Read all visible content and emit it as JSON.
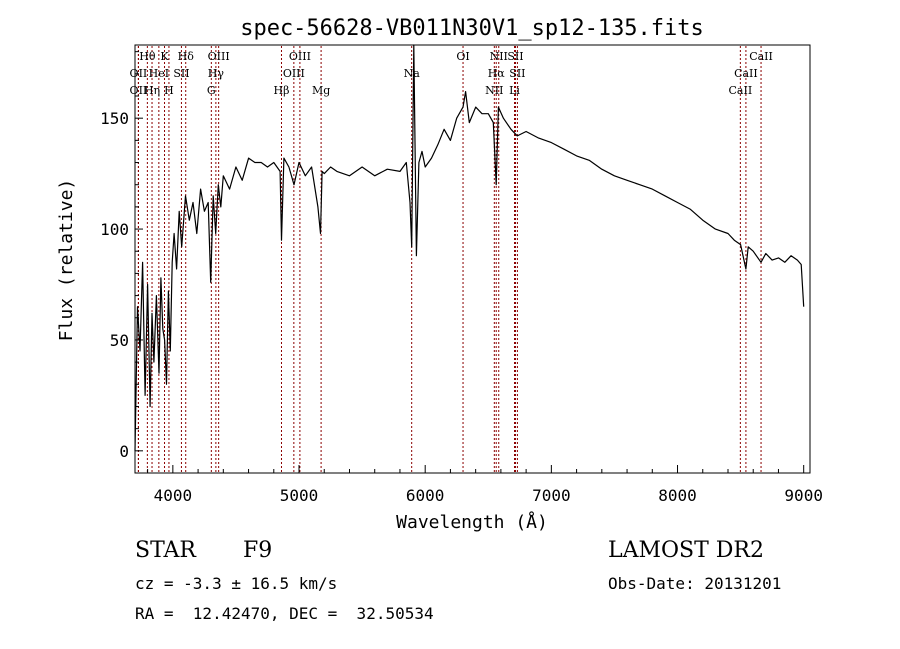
{
  "chart_data": {
    "type": "line",
    "title": "spec-56628-VB011N30V1_sp12-135.fits",
    "xlabel": "Wavelength (Å)",
    "ylabel": "Flux (relative)",
    "xlim": [
      3700,
      9050
    ],
    "ylim": [
      -10,
      183
    ],
    "xticks": [
      4000,
      5000,
      6000,
      7000,
      8000,
      9000
    ],
    "yticks": [
      0,
      50,
      100,
      150
    ],
    "grid": false,
    "line_color": "#000000",
    "marker_color": "#8b0000",
    "series": [
      {
        "x": [
          3700,
          3720,
          3740,
          3760,
          3780,
          3800,
          3820,
          3835,
          3850,
          3870,
          3890,
          3905,
          3920,
          3935,
          3950,
          3965,
          3980,
          3995,
          4010,
          4030,
          4050,
          4070,
          4100,
          4130,
          4160,
          4190,
          4220,
          4250,
          4280,
          4300,
          4320,
          4340,
          4360,
          4380,
          4400,
          4450,
          4500,
          4550,
          4600,
          4650,
          4700,
          4750,
          4800,
          4850,
          4861,
          4880,
          4920,
          4960,
          5000,
          5050,
          5100,
          5150,
          5170,
          5183,
          5200,
          5250,
          5300,
          5400,
          5500,
          5600,
          5700,
          5800,
          5850,
          5880,
          5893,
          5910,
          5930,
          5950,
          5975,
          6000,
          6050,
          6100,
          6150,
          6200,
          6250,
          6300,
          6320,
          6350,
          6400,
          6450,
          6500,
          6540,
          6563,
          6580,
          6620,
          6680,
          6730,
          6800,
          6900,
          7000,
          7100,
          7200,
          7300,
          7400,
          7500,
          7600,
          7700,
          7800,
          7900,
          8000,
          8100,
          8200,
          8300,
          8400,
          8450,
          8500,
          8542,
          8560,
          8600,
          8662,
          8700,
          8750,
          8800,
          8850,
          8900,
          8950,
          8980,
          9000
        ],
        "y": [
          0,
          65,
          45,
          85,
          25,
          75,
          20,
          62,
          40,
          70,
          35,
          78,
          55,
          50,
          30,
          72,
          45,
          85,
          98,
          82,
          108,
          92,
          115,
          104,
          112,
          98,
          118,
          108,
          112,
          76,
          115,
          98,
          120,
          110,
          124,
          118,
          128,
          122,
          132,
          130,
          130,
          128,
          130,
          126,
          95,
          132,
          128,
          120,
          130,
          124,
          128,
          110,
          98,
          126,
          125,
          128,
          126,
          124,
          128,
          124,
          127,
          126,
          130,
          112,
          92,
          183,
          88,
          130,
          135,
          128,
          132,
          138,
          145,
          140,
          150,
          155,
          162,
          148,
          155,
          152,
          152,
          148,
          120,
          155,
          150,
          145,
          142,
          144,
          141,
          139,
          136,
          133,
          131,
          127,
          124,
          122,
          120,
          118,
          115,
          112,
          109,
          104,
          100,
          98,
          95,
          93,
          82,
          92,
          90,
          85,
          89,
          86,
          87,
          85,
          88,
          86,
          84,
          65
        ]
      }
    ],
    "lines": [
      {
        "label": "Hθ",
        "x": 3798,
        "row": 1
      },
      {
        "label": "OII",
        "x": 3727,
        "row": 2
      },
      {
        "label": "OII",
        "x": 3727,
        "row": 3
      },
      {
        "label": "Hη",
        "x": 3835,
        "row": 3
      },
      {
        "label": "HeI",
        "x": 3889,
        "row": 2
      },
      {
        "label": "K",
        "x": 3934,
        "row": 1
      },
      {
        "label": "SII",
        "x": 4068,
        "row": 2
      },
      {
        "label": "H",
        "x": 3969,
        "row": 3
      },
      {
        "label": "Hδ",
        "x": 4102,
        "row": 1
      },
      {
        "label": "OIII",
        "x": 4363,
        "row": 1
      },
      {
        "label": "Hγ",
        "x": 4341,
        "row": 2
      },
      {
        "label": "G",
        "x": 4305,
        "row": 3
      },
      {
        "label": "Hβ",
        "x": 4861,
        "row": 3
      },
      {
        "label": "OIII",
        "x": 5007,
        "row": 1
      },
      {
        "label": "OIII",
        "x": 4959,
        "row": 2
      },
      {
        "label": "Mg",
        "x": 5175,
        "row": 3
      },
      {
        "label": "Na",
        "x": 5893,
        "row": 2
      },
      {
        "label": "OI",
        "x": 6300,
        "row": 1
      },
      {
        "label": "NII",
        "x": 6583,
        "row": 1
      },
      {
        "label": "Hα",
        "x": 6563,
        "row": 2
      },
      {
        "label": "NII",
        "x": 6548,
        "row": 3
      },
      {
        "label": "SII",
        "x": 6716,
        "row": 1
      },
      {
        "label": "SII",
        "x": 6731,
        "row": 2
      },
      {
        "label": "Li",
        "x": 6708,
        "row": 3
      },
      {
        "label": "CaII",
        "x": 8662,
        "row": 1
      },
      {
        "label": "CaII",
        "x": 8542,
        "row": 2
      },
      {
        "label": "CaII",
        "x": 8498,
        "row": 3
      }
    ]
  },
  "info": {
    "object_type": "STAR",
    "subclass": "F9",
    "survey": "LAMOST DR2",
    "redshift": "cz = -3.3 ± 16.5 km/s",
    "obs_date": "Obs-Date: 20131201",
    "coords": "RA =  12.42470, DEC =  32.50534"
  }
}
